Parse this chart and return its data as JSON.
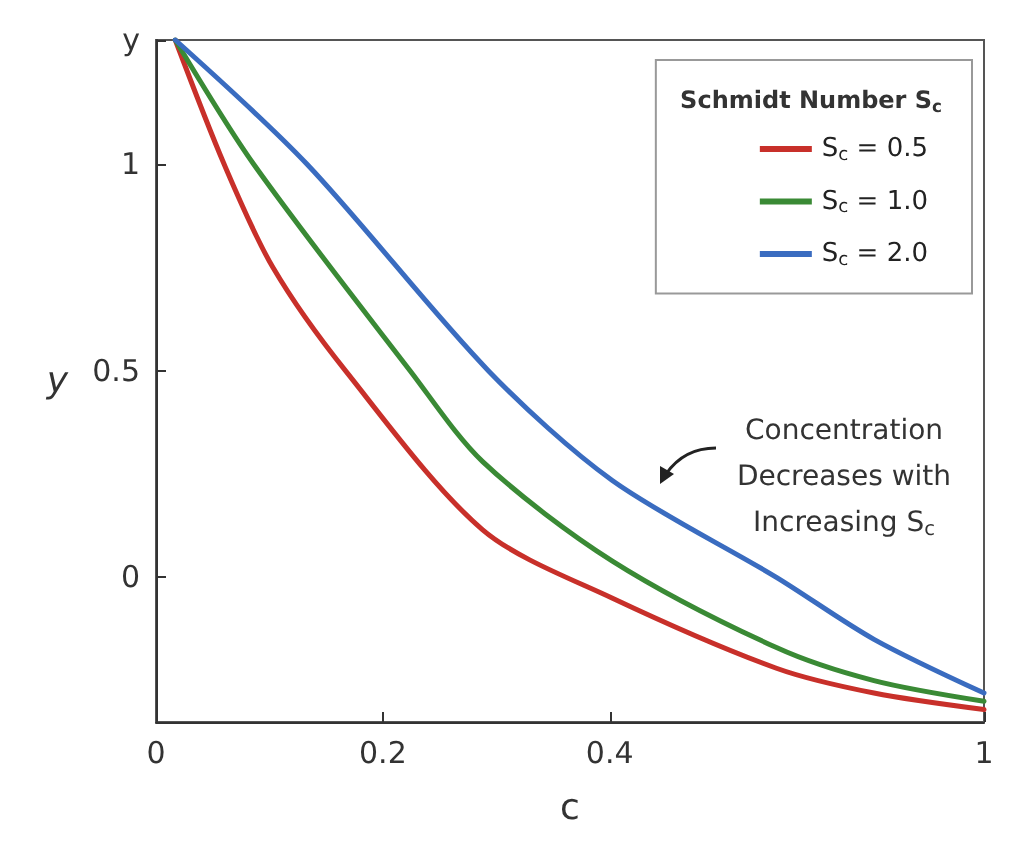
{
  "chart_data": {
    "type": "line",
    "xlabel": "c",
    "ylabel": "y",
    "legend_title": "Schmidt Number S$_{c}$",
    "xlim": [
      0,
      0.73
    ],
    "xticks": [
      0,
      0.2,
      0.4,
      {
        "value": 0.73,
        "label": "1"
      }
    ],
    "ylim": [
      -0.35,
      1.3
    ],
    "yticks": [
      0,
      0.5,
      1,
      {
        "value": 1.3,
        "label": "y"
      }
    ],
    "series": [
      {
        "name": "S$_{c}$ = 0.5",
        "color": "#c8302a",
        "x": [
          0.017,
          0.06,
          0.103,
          0.167,
          0.288,
          0.402,
          0.547,
          0.633,
          0.73
        ],
        "values": [
          1.3,
          1.0,
          0.75,
          0.5,
          0.115,
          -0.05,
          -0.22,
          -0.28,
          -0.32
        ]
      },
      {
        "name": "S$_{c}$ = 1.0",
        "color": "#3a8a35",
        "x": [
          0.017,
          0.086,
          0.224,
          0.288,
          0.402,
          0.547,
          0.633,
          0.73
        ],
        "values": [
          1.3,
          1.0,
          0.5,
          0.28,
          0.04,
          -0.17,
          -0.25,
          -0.3
        ]
      },
      {
        "name": "S$_{c}$ = 2.0",
        "color": "#3a6cc0",
        "x": [
          0.017,
          0.133,
          0.293,
          0.402,
          0.547,
          0.633,
          0.73
        ],
        "values": [
          1.3,
          1.0,
          0.5,
          0.235,
          0.0,
          -0.15,
          -0.28
        ]
      }
    ],
    "annotations": [
      "Concentration\nDecreases with\nIncreasing S$_{c}$"
    ],
    "legend": "top right",
    "grid": false,
    "marker": "none",
    "line_style": "solid"
  }
}
